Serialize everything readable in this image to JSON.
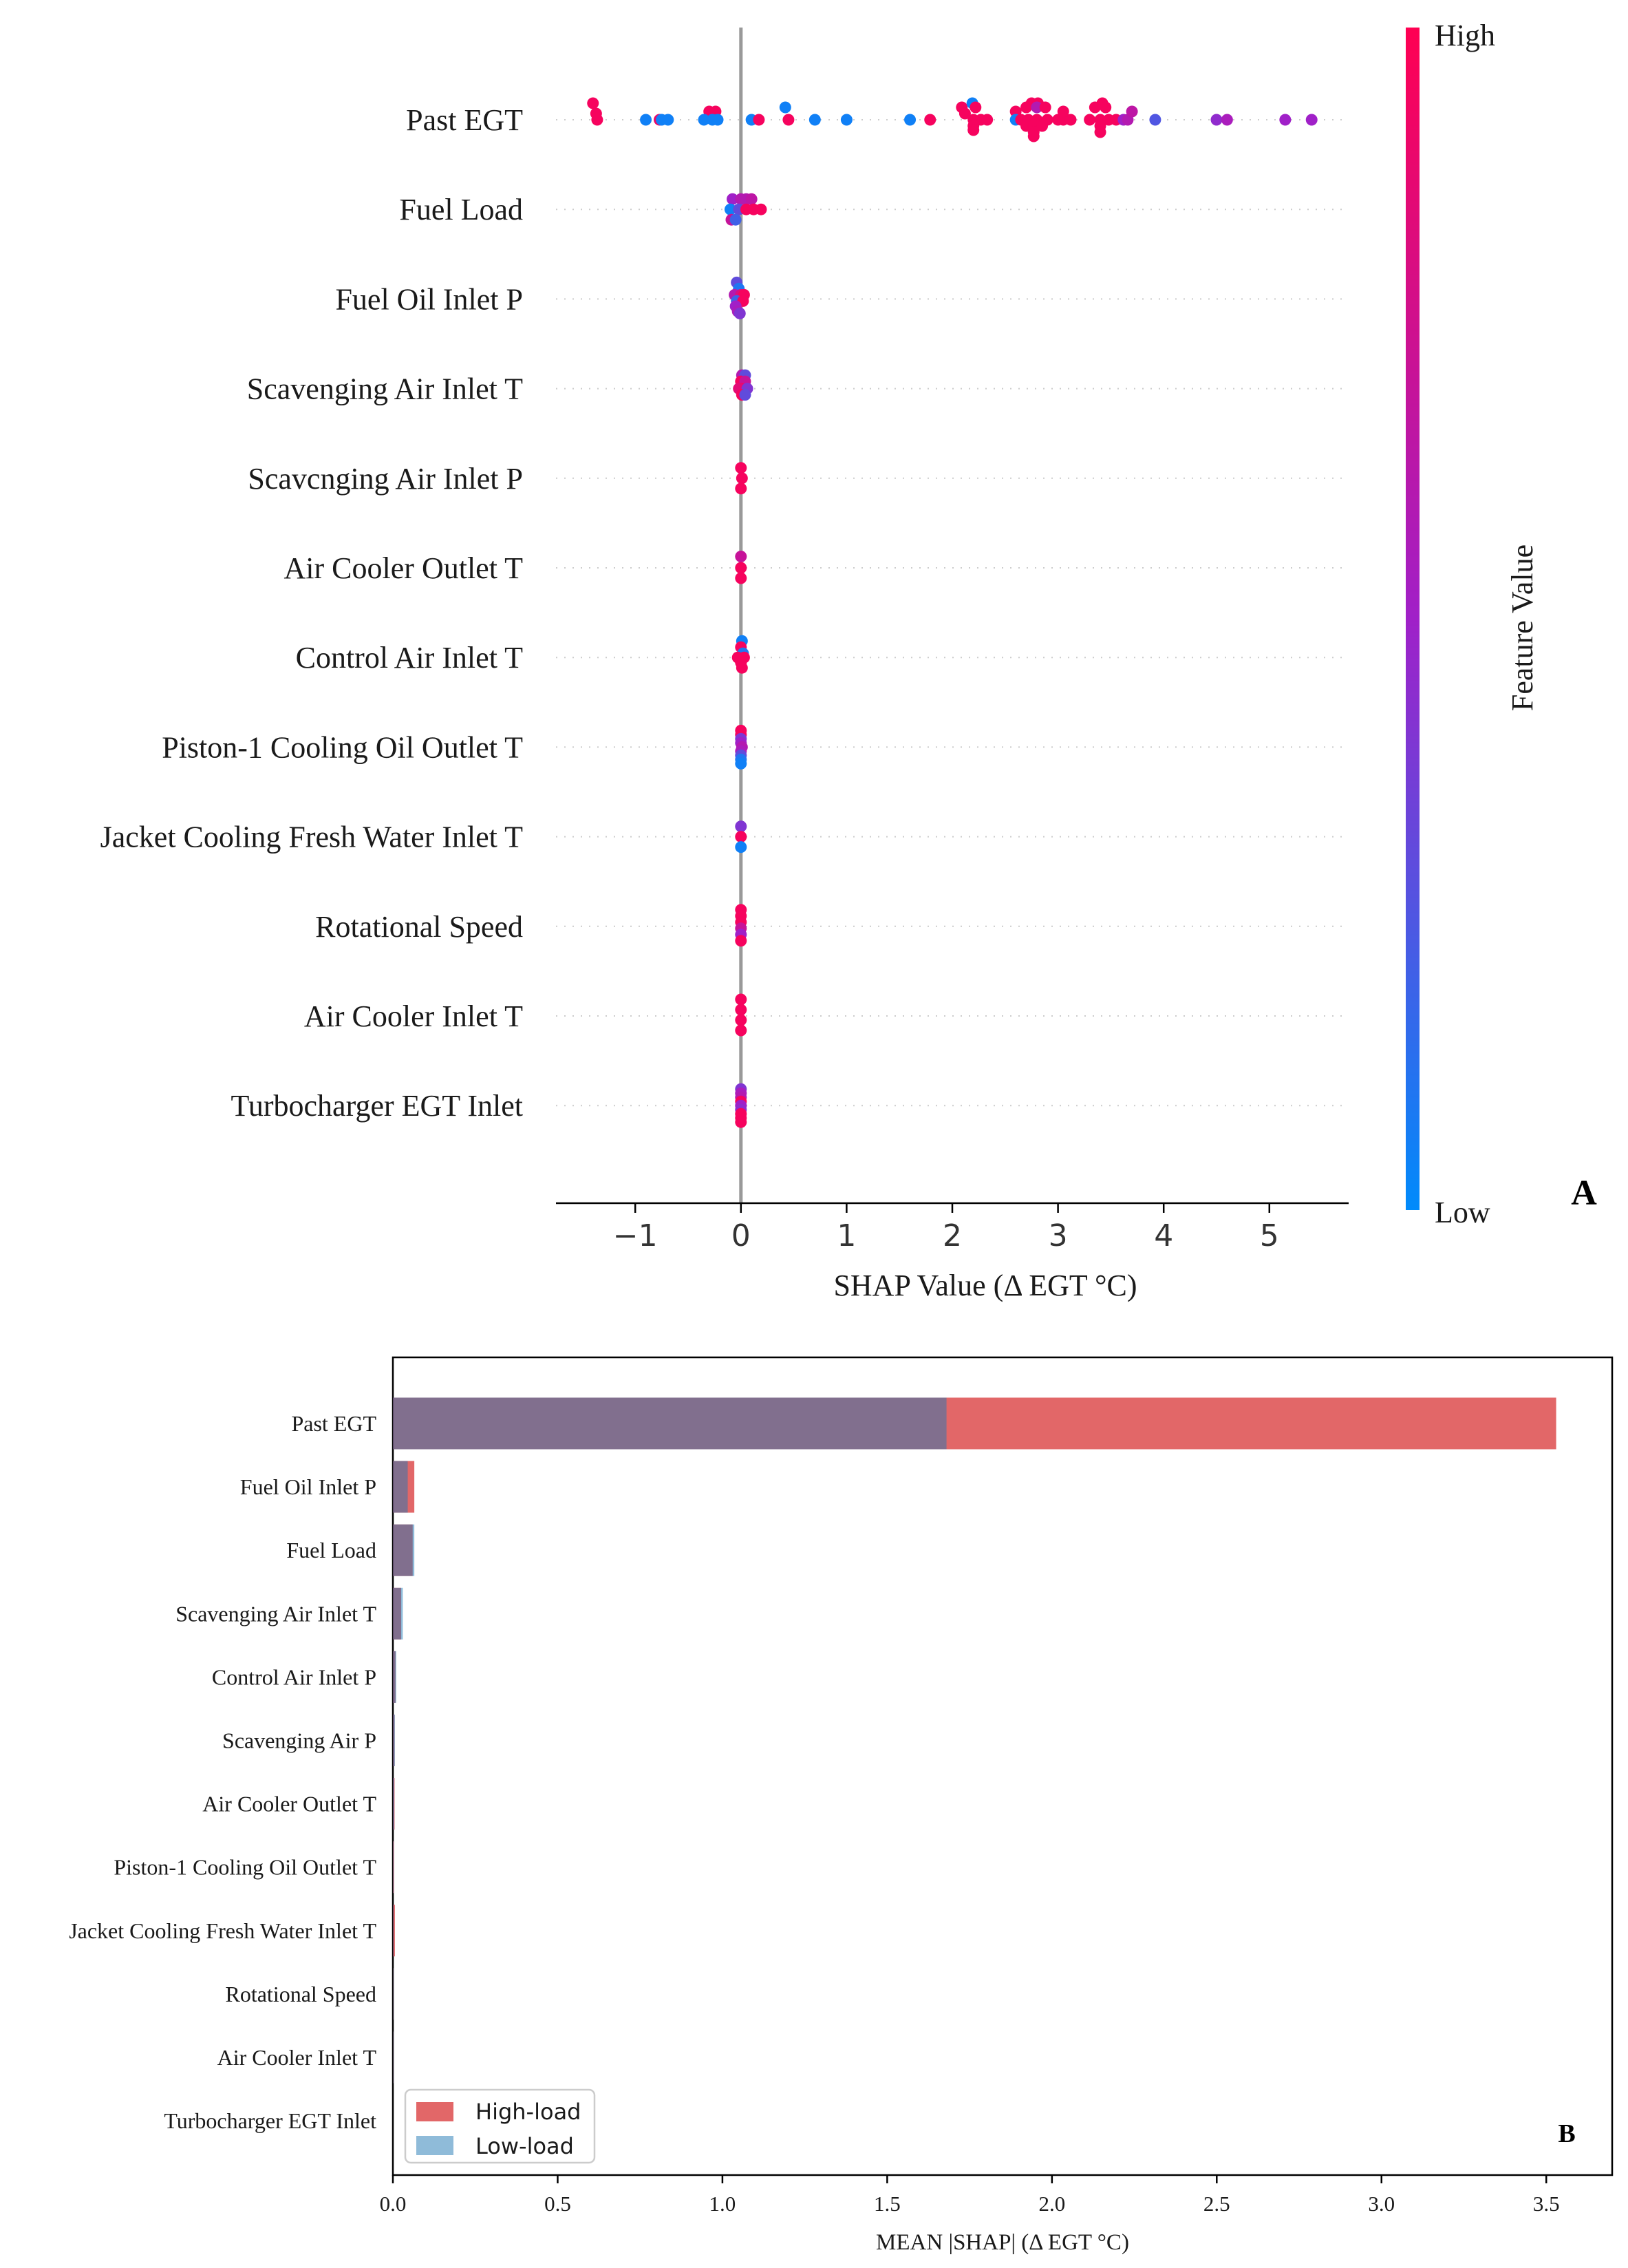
{
  "chart_data": [
    {
      "panel": "A",
      "type": "scatter",
      "subtype": "shap-beeswarm",
      "xlabel": "SHAP Value (Δ EGT °C)",
      "xlim": [
        -1.75,
        5.75
      ],
      "xticks": [
        -1,
        0,
        1,
        2,
        3,
        4,
        5
      ],
      "xtick_labels": [
        "−1",
        "0",
        "1",
        "2",
        "3",
        "4",
        "5"
      ],
      "zero_line": 0,
      "features": [
        "Past EGT",
        "Fuel Load",
        "Fuel Oil Inlet P",
        "Scavenging Air Inlet T",
        "Scavcnging Air Inlet P",
        "Air Cooler Outlet T",
        "Control Air Inlet T",
        "Piston-1 Cooling Oil Outlet T",
        "Jacket Cooling Fresh Water Inlet T",
        "Rotational Speed",
        "Air Cooler Inlet T",
        "Turbocharger EGT Inlet"
      ],
      "colorbar": {
        "label": "Feature Value",
        "high_label": "High",
        "low_label": "Low",
        "high_color": "#ff0052",
        "mid_color": "#a020c8",
        "low_color": "#008bfb"
      },
      "points": [
        [
          [
            -1.4,
            -1.6,
            0.95
          ],
          [
            -1.37,
            -0.6,
            0.95
          ],
          [
            -1.36,
            0,
            0.95
          ],
          [
            -0.9,
            0,
            0.05
          ],
          [
            -0.77,
            0,
            0.9
          ],
          [
            -0.75,
            0,
            0.05
          ],
          [
            -0.69,
            0,
            0.05
          ],
          [
            -0.3,
            -0.8,
            0.95
          ],
          [
            -0.24,
            -0.8,
            0.95
          ],
          [
            -0.35,
            0,
            0.05
          ],
          [
            -0.27,
            0,
            0.05
          ],
          [
            -0.22,
            0,
            0.05
          ],
          [
            0.1,
            0,
            0.05
          ],
          [
            0.17,
            0,
            0.95
          ],
          [
            0.42,
            -1.2,
            0.05
          ],
          [
            0.45,
            0,
            0.95
          ],
          [
            0.7,
            0,
            0.05
          ],
          [
            1.0,
            0,
            0.05
          ],
          [
            1.6,
            0,
            0.05
          ],
          [
            1.79,
            0,
            0.95
          ],
          [
            2.09,
            -1.2,
            0.95
          ],
          [
            2.19,
            -1.6,
            0.05
          ],
          [
            2.22,
            -1.2,
            0.95
          ],
          [
            2.12,
            -0.6,
            0.95
          ],
          [
            2.2,
            0,
            0.95
          ],
          [
            2.27,
            0,
            0.95
          ],
          [
            2.33,
            0,
            0.95
          ],
          [
            2.2,
            0.6,
            0.95
          ],
          [
            2.2,
            1.0,
            0.95
          ],
          [
            2.6,
            -0.8,
            0.95
          ],
          [
            2.75,
            -1.6,
            0.95
          ],
          [
            2.81,
            -1.6,
            0.95
          ],
          [
            2.7,
            -1.2,
            0.95
          ],
          [
            2.8,
            -1.2,
            0.6
          ],
          [
            2.88,
            -1.2,
            0.95
          ],
          [
            2.6,
            0,
            0.05
          ],
          [
            2.65,
            0,
            0.95
          ],
          [
            2.72,
            0,
            0.95
          ],
          [
            2.8,
            0,
            0.95
          ],
          [
            2.9,
            0,
            0.95
          ],
          [
            2.7,
            0.6,
            0.95
          ],
          [
            2.77,
            0.6,
            0.95
          ],
          [
            2.85,
            0.6,
            0.95
          ],
          [
            2.77,
            1.2,
            0.95
          ],
          [
            2.77,
            1.6,
            0.95
          ],
          [
            3.0,
            0,
            0.95
          ],
          [
            3.05,
            0,
            0.95
          ],
          [
            3.12,
            0,
            0.95
          ],
          [
            3.05,
            -0.8,
            0.95
          ],
          [
            3.42,
            -1.6,
            0.95
          ],
          [
            3.35,
            -1.2,
            0.95
          ],
          [
            3.45,
            -1.2,
            0.95
          ],
          [
            3.3,
            0,
            0.95
          ],
          [
            3.4,
            0,
            0.95
          ],
          [
            3.48,
            0,
            0.95
          ],
          [
            3.55,
            0,
            0.95
          ],
          [
            3.4,
            0.6,
            0.95
          ],
          [
            3.4,
            1.2,
            0.95
          ],
          [
            3.62,
            0,
            0.5
          ],
          [
            3.66,
            0,
            0.6
          ],
          [
            3.7,
            -0.8,
            0.65
          ],
          [
            3.92,
            0,
            0.25
          ],
          [
            4.5,
            0,
            0.45
          ],
          [
            4.6,
            0,
            0.55
          ],
          [
            5.15,
            0,
            0.5
          ],
          [
            5.4,
            0,
            0.5
          ]
        ],
        [
          [
            -0.08,
            -1.0,
            0.5
          ],
          [
            0.0,
            -1.0,
            0.6
          ],
          [
            0.05,
            -1.0,
            0.6
          ],
          [
            0.1,
            -1.0,
            0.65
          ],
          [
            -0.1,
            0,
            0.05
          ],
          [
            -0.02,
            0,
            0.3
          ],
          [
            0.05,
            0,
            0.95
          ],
          [
            0.12,
            0,
            0.95
          ],
          [
            0.19,
            0,
            0.95
          ],
          [
            -0.09,
            1.0,
            0.7
          ],
          [
            -0.05,
            1.0,
            0.2
          ]
        ],
        [
          [
            -0.04,
            -1.6,
            0.3
          ],
          [
            -0.02,
            -1.0,
            0.1
          ],
          [
            -0.06,
            -0.4,
            0.6
          ],
          [
            0.0,
            -0.4,
            0.8
          ],
          [
            0.03,
            -0.4,
            0.95
          ],
          [
            -0.04,
            0.2,
            0.2
          ],
          [
            0.02,
            0.2,
            0.95
          ],
          [
            -0.05,
            0.7,
            0.5
          ],
          [
            -0.03,
            1.2,
            0.55
          ],
          [
            -0.01,
            1.4,
            0.4
          ]
        ],
        [
          [
            0.01,
            -1.3,
            0.6
          ],
          [
            0.04,
            -1.3,
            0.3
          ],
          [
            0.0,
            -0.7,
            0.95
          ],
          [
            0.04,
            -0.7,
            0.7
          ],
          [
            0.0,
            0,
            0.95
          ],
          [
            -0.02,
            0,
            0.85
          ],
          [
            0.06,
            0,
            0.4
          ],
          [
            0.01,
            0.6,
            0.95
          ],
          [
            0.04,
            0.6,
            0.3
          ]
        ],
        [
          [
            0.0,
            -1.0,
            0.95
          ],
          [
            0.01,
            0,
            0.95
          ],
          [
            0.0,
            1.0,
            0.95
          ]
        ],
        [
          [
            0.0,
            -1.1,
            0.7
          ],
          [
            0.0,
            0,
            0.95
          ],
          [
            0.0,
            1.0,
            0.95
          ]
        ],
        [
          [
            0.01,
            -1.6,
            0.05
          ],
          [
            0.0,
            -1.0,
            0.95
          ],
          [
            0.02,
            -0.4,
            0.1
          ],
          [
            -0.03,
            0,
            0.95
          ],
          [
            0.03,
            0,
            0.95
          ],
          [
            0.0,
            0.5,
            0.95
          ],
          [
            0.01,
            1.0,
            0.95
          ]
        ],
        [
          [
            0.0,
            -1.6,
            0.95
          ],
          [
            0.0,
            -1.2,
            0.95
          ],
          [
            0.0,
            -0.8,
            0.4
          ],
          [
            0.0,
            -0.4,
            0.5
          ],
          [
            0.01,
            0,
            0.6
          ],
          [
            0.0,
            0.4,
            0.55
          ],
          [
            0.0,
            0.8,
            0.3
          ],
          [
            0.0,
            1.2,
            0.1
          ],
          [
            0.0,
            1.6,
            0.05
          ]
        ],
        [
          [
            0.0,
            -1.0,
            0.4
          ],
          [
            0.0,
            0,
            0.95
          ],
          [
            0.0,
            1.0,
            0.05
          ]
        ],
        [
          [
            0.0,
            -1.6,
            0.95
          ],
          [
            0.0,
            -1.0,
            0.95
          ],
          [
            0.0,
            -0.4,
            0.95
          ],
          [
            0.0,
            0.2,
            0.7
          ],
          [
            0.0,
            0.8,
            0.5
          ],
          [
            0.0,
            1.4,
            0.95
          ]
        ],
        [
          [
            0.0,
            -1.6,
            0.95
          ],
          [
            0.0,
            -0.6,
            0.95
          ],
          [
            0.0,
            0.4,
            0.95
          ],
          [
            0.0,
            1.4,
            0.95
          ]
        ],
        [
          [
            0.0,
            -1.6,
            0.4
          ],
          [
            0.0,
            -1.2,
            0.55
          ],
          [
            0.0,
            -0.8,
            0.6
          ],
          [
            0.0,
            -0.4,
            0.95
          ],
          [
            0.0,
            0,
            0.5
          ],
          [
            0.0,
            0.4,
            0.45
          ],
          [
            0.0,
            0.8,
            0.95
          ],
          [
            0.0,
            1.2,
            0.95
          ],
          [
            0.0,
            1.6,
            0.95
          ]
        ]
      ],
      "corner_label": "A"
    },
    {
      "panel": "B",
      "type": "bar",
      "orientation": "horizontal",
      "xlabel": "MEAN |SHAP| (Δ EGT °C)",
      "xlim": [
        0,
        3.7
      ],
      "xticks": [
        0.0,
        0.5,
        1.0,
        1.5,
        2.0,
        2.5,
        3.0,
        3.5
      ],
      "xtick_labels": [
        "0.0",
        "0.5",
        "1.0",
        "1.5",
        "2.0",
        "2.5",
        "3.0",
        "3.5"
      ],
      "categories": [
        "Past EGT",
        "Fuel Oil Inlet P",
        "Fuel Load",
        "Scavenging Air Inlet T",
        "Control Air Inlet P",
        "Scavenging Air P",
        "Air Cooler Outlet T",
        "Piston-1 Cooling Oil Outlet T",
        "Jacket Cooling Fresh Water Inlet T",
        "Rotational Speed",
        "Air Cooler Inlet T",
        "Turbocharger EGT Inlet"
      ],
      "series": [
        {
          "name": "High-load",
          "color": "#d62728",
          "values": [
            3.53,
            0.065,
            0.06,
            0.025,
            0.008,
            0.005,
            0.005,
            0.003,
            0.006,
            0.001,
            0.001,
            0.0
          ]
        },
        {
          "name": "Low-load",
          "color": "#1f77b4",
          "values": [
            1.68,
            0.045,
            0.065,
            0.03,
            0.01,
            0.006,
            0.004,
            0.002,
            0.002,
            0.001,
            0.001,
            0.0
          ]
        }
      ],
      "legend": "lower-left",
      "corner_label": "B"
    }
  ]
}
